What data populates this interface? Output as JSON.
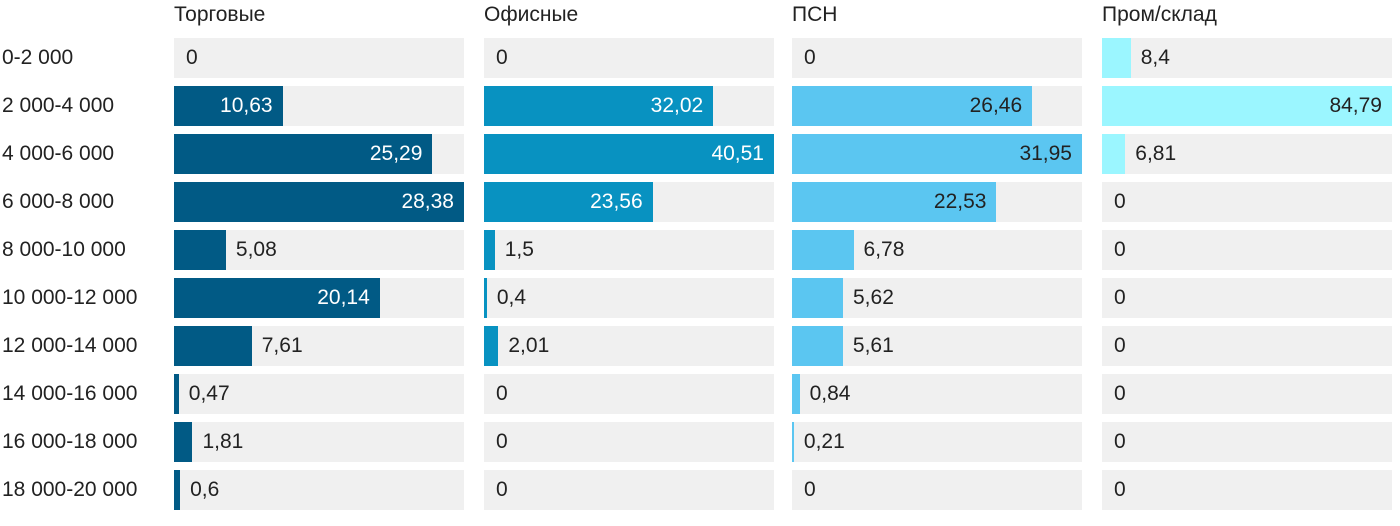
{
  "chart_data": {
    "type": "bar",
    "orientation": "horizontal",
    "layout": "small-multiples",
    "categories": [
      "0-2 000",
      "2 000-4 000",
      "4 000-6 000",
      "6 000-8 000",
      "8 000-10 000",
      "10 000-12 000",
      "12 000-14 000",
      "14 000-16 000",
      "16 000-18 000",
      "18 000-20 000"
    ],
    "series": [
      {
        "name": "Торговые",
        "color": "#015a85",
        "values": [
          0,
          10.63,
          25.29,
          28.38,
          5.08,
          20.14,
          7.61,
          0.47,
          1.81,
          0.6
        ],
        "labels": [
          "0",
          "10,63",
          "25,29",
          "28,38",
          "5,08",
          "20,14",
          "7,61",
          "0,47",
          "1,81",
          "0,6"
        ],
        "xlim": [
          0,
          28.38
        ]
      },
      {
        "name": "Офисные",
        "color": "#0892c1",
        "values": [
          0,
          32.02,
          40.51,
          23.56,
          1.5,
          0.4,
          2.01,
          0,
          0,
          0
        ],
        "labels": [
          "0",
          "32,02",
          "40,51",
          "23,56",
          "1,5",
          "0,4",
          "2,01",
          "0",
          "0",
          "0"
        ],
        "xlim": [
          0,
          40.51
        ]
      },
      {
        "name": "ПСН",
        "color": "#5bc6f1",
        "values": [
          0,
          26.46,
          31.95,
          22.53,
          6.78,
          5.62,
          5.61,
          0.84,
          0.21,
          0
        ],
        "labels": [
          "0",
          "26,46",
          "31,95",
          "22,53",
          "6,78",
          "5,62",
          "5,61",
          "0,84",
          "0,21",
          "0"
        ],
        "xlim": [
          0,
          31.95
        ]
      },
      {
        "name": "Пром/склад",
        "color": "#9bf6ff",
        "values": [
          8.4,
          84.79,
          6.81,
          0,
          0,
          0,
          0,
          0,
          0,
          0
        ],
        "labels": [
          "8,4",
          "84,79",
          "6,81",
          "0",
          "0",
          "0",
          "0",
          "0",
          "0",
          "0"
        ],
        "xlim": [
          0,
          84.79
        ]
      }
    ],
    "title": "",
    "xlabel": "",
    "ylabel": "",
    "grid": false,
    "legend": "none"
  }
}
